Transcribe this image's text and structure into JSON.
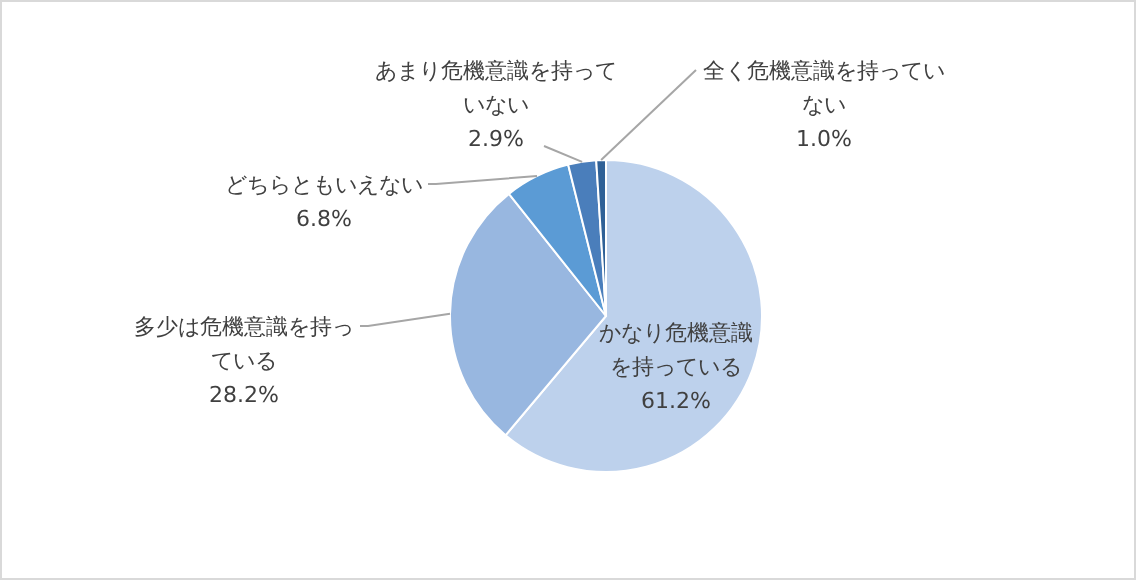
{
  "chart_data": {
    "type": "pie",
    "categories": [
      "かなり危機意識を持っている",
      "多少は危機意識を持っている",
      "どちらともいえない",
      "あまり危機意識を持っていない",
      "全く危機意識を持っていない"
    ],
    "values": [
      61.2,
      28.2,
      6.8,
      2.9,
      1.0
    ],
    "value_labels": [
      "61.2%",
      "28.2%",
      "6.8%",
      "2.9%",
      "1.0%"
    ],
    "colors": [
      "#bdd1ec",
      "#98b7e0",
      "#5b9bd5",
      "#4a7ebb",
      "#2f6197"
    ]
  }
}
